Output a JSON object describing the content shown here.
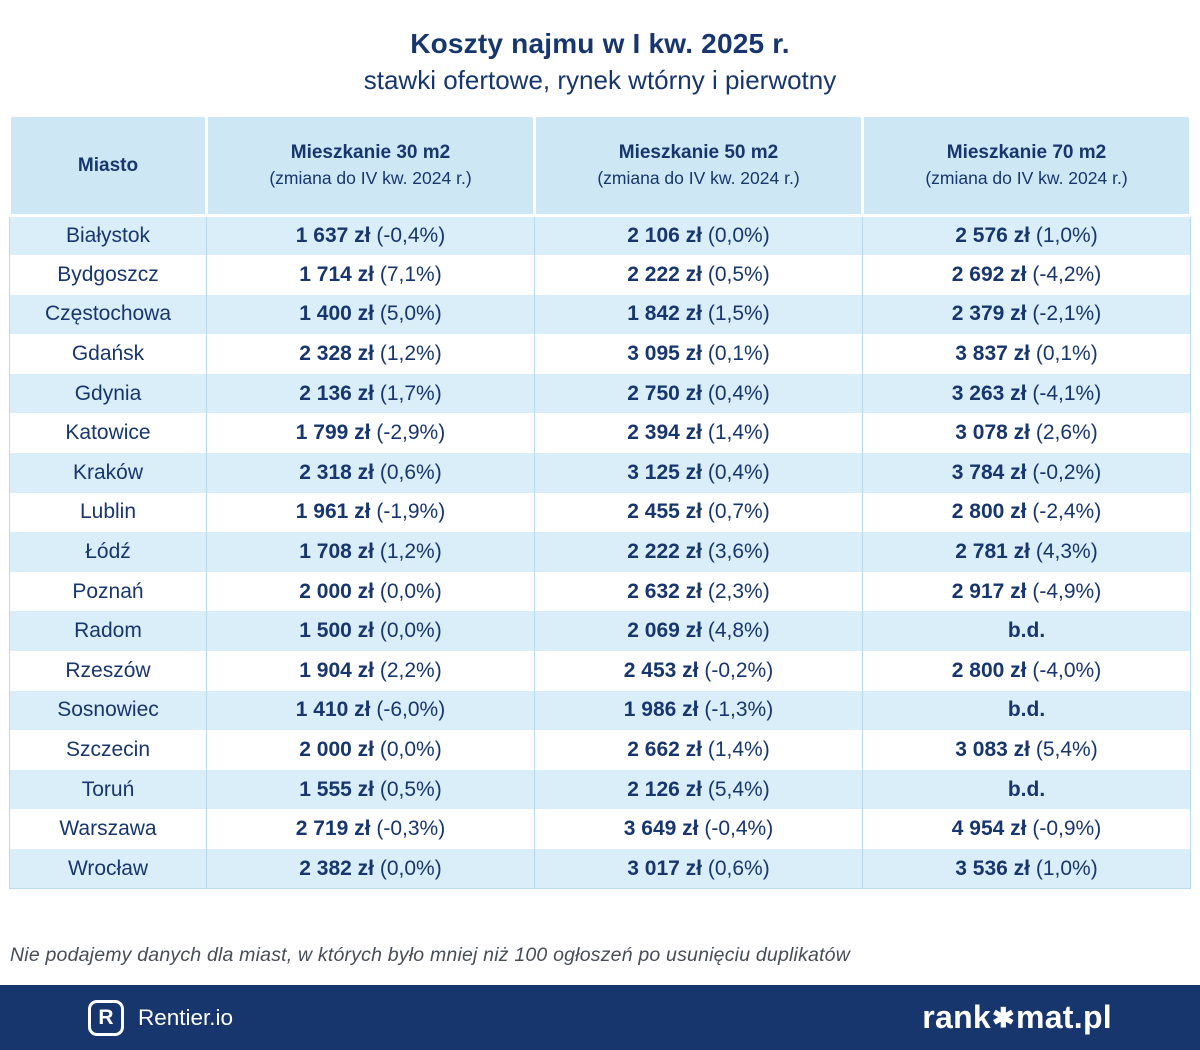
{
  "chart_data": {
    "type": "table",
    "title": "Koszty najmu w I kw. 2025 r.",
    "subtitle": "stawki ofertowe, rynek wtórny i pierwotny",
    "city_header": "Miasto",
    "col_headers": [
      {
        "line1": "Mieszkanie 30 m2",
        "line2": "(zmiana do IV kw. 2024 r.)"
      },
      {
        "line1": "Mieszkanie 50 m2",
        "line2": "(zmiana do IV kw. 2024 r.)"
      },
      {
        "line1": "Mieszkanie 70 m2",
        "line2": "(zmiana do IV kw. 2024 r.)"
      }
    ],
    "no_data_label": "b.d.",
    "rows": [
      {
        "city": "Białystok",
        "cells": [
          {
            "price": "1 637 zł",
            "change": "(-0,4%)"
          },
          {
            "price": "2 106 zł",
            "change": "(0,0%)"
          },
          {
            "price": "2 576 zł",
            "change": "(1,0%)"
          }
        ]
      },
      {
        "city": "Bydgoszcz",
        "cells": [
          {
            "price": "1 714 zł",
            "change": "(7,1%)"
          },
          {
            "price": "2 222 zł",
            "change": "(0,5%)"
          },
          {
            "price": "2 692 zł",
            "change": "(-4,2%)"
          }
        ]
      },
      {
        "city": "Częstochowa",
        "cells": [
          {
            "price": "1 400 zł",
            "change": "(5,0%)"
          },
          {
            "price": "1 842 zł",
            "change": "(1,5%)"
          },
          {
            "price": "2 379 zł",
            "change": "(-2,1%)"
          }
        ]
      },
      {
        "city": "Gdańsk",
        "cells": [
          {
            "price": "2 328 zł",
            "change": "(1,2%)"
          },
          {
            "price": "3 095 zł",
            "change": "(0,1%)"
          },
          {
            "price": "3 837 zł",
            "change": "(0,1%)"
          }
        ]
      },
      {
        "city": "Gdynia",
        "cells": [
          {
            "price": "2 136 zł",
            "change": "(1,7%)"
          },
          {
            "price": "2 750 zł",
            "change": "(0,4%)"
          },
          {
            "price": "3 263 zł",
            "change": "(-4,1%)"
          }
        ]
      },
      {
        "city": "Katowice",
        "cells": [
          {
            "price": "1 799 zł",
            "change": "(-2,9%)"
          },
          {
            "price": "2 394 zł",
            "change": "(1,4%)"
          },
          {
            "price": "3 078 zł",
            "change": "(2,6%)"
          }
        ]
      },
      {
        "city": "Kraków",
        "cells": [
          {
            "price": "2 318 zł",
            "change": "(0,6%)"
          },
          {
            "price": "3 125 zł",
            "change": "(0,4%)"
          },
          {
            "price": "3 784 zł",
            "change": "(-0,2%)"
          }
        ]
      },
      {
        "city": "Lublin",
        "cells": [
          {
            "price": "1 961 zł",
            "change": "(-1,9%)"
          },
          {
            "price": "2 455 zł",
            "change": "(0,7%)"
          },
          {
            "price": "2 800 zł",
            "change": "(-2,4%)"
          }
        ]
      },
      {
        "city": "Łódź",
        "cells": [
          {
            "price": "1 708 zł",
            "change": "(1,2%)"
          },
          {
            "price": "2 222 zł",
            "change": "(3,6%)"
          },
          {
            "price": "2 781 zł",
            "change": "(4,3%)"
          }
        ]
      },
      {
        "city": "Poznań",
        "cells": [
          {
            "price": "2 000 zł",
            "change": "(0,0%)"
          },
          {
            "price": "2 632 zł",
            "change": "(2,3%)"
          },
          {
            "price": "2 917 zł",
            "change": "(-4,9%)"
          }
        ]
      },
      {
        "city": "Radom",
        "cells": [
          {
            "price": "1 500 zł",
            "change": "(0,0%)"
          },
          {
            "price": "2 069 zł",
            "change": "(4,8%)"
          },
          {
            "price": "b.d.",
            "change": ""
          }
        ]
      },
      {
        "city": "Rzeszów",
        "cells": [
          {
            "price": "1 904 zł",
            "change": "(2,2%)"
          },
          {
            "price": "2 453 zł",
            "change": "(-0,2%)"
          },
          {
            "price": "2 800 zł",
            "change": "(-4,0%)"
          }
        ]
      },
      {
        "city": "Sosnowiec",
        "cells": [
          {
            "price": "1 410 zł",
            "change": "(-6,0%)"
          },
          {
            "price": "1 986 zł",
            "change": "(-1,3%)"
          },
          {
            "price": "b.d.",
            "change": ""
          }
        ]
      },
      {
        "city": "Szczecin",
        "cells": [
          {
            "price": "2 000 zł",
            "change": "(0,0%)"
          },
          {
            "price": "2 662 zł",
            "change": "(1,4%)"
          },
          {
            "price": "3 083 zł",
            "change": "(5,4%)"
          }
        ]
      },
      {
        "city": "Toruń",
        "cells": [
          {
            "price": "1 555 zł",
            "change": "(0,5%)"
          },
          {
            "price": "2 126 zł",
            "change": "(5,4%)"
          },
          {
            "price": "b.d.",
            "change": ""
          }
        ]
      },
      {
        "city": "Warszawa",
        "cells": [
          {
            "price": "2 719 zł",
            "change": "(-0,3%)"
          },
          {
            "price": "3 649 zł",
            "change": "(-0,4%)"
          },
          {
            "price": "4 954 zł",
            "change": "(-0,9%)"
          }
        ]
      },
      {
        "city": "Wrocław",
        "cells": [
          {
            "price": "2 382 zł",
            "change": "(0,0%)"
          },
          {
            "price": "3 017 zł",
            "change": "(0,6%)"
          },
          {
            "price": "3 536 zł",
            "change": "(1,0%)"
          }
        ]
      }
    ]
  },
  "footnote": "Nie podajemy danych dla miast, w których było mniej niż 100 ogłoszeń po usunięciu duplikatów",
  "footer": {
    "rentier_letter": "R",
    "rentier_label": "Rentier.io",
    "rankomat_prefix": "rank",
    "rankomat_star": "✱",
    "rankomat_suffix": "mat.pl"
  },
  "colors": {
    "navy": "#17366e",
    "header_blue": "#cde7f5",
    "row_blue": "#d9eef8",
    "grid_line": "#b9d9ec",
    "footnote_gray": "#474d57",
    "footer_bg": "#17366e"
  }
}
